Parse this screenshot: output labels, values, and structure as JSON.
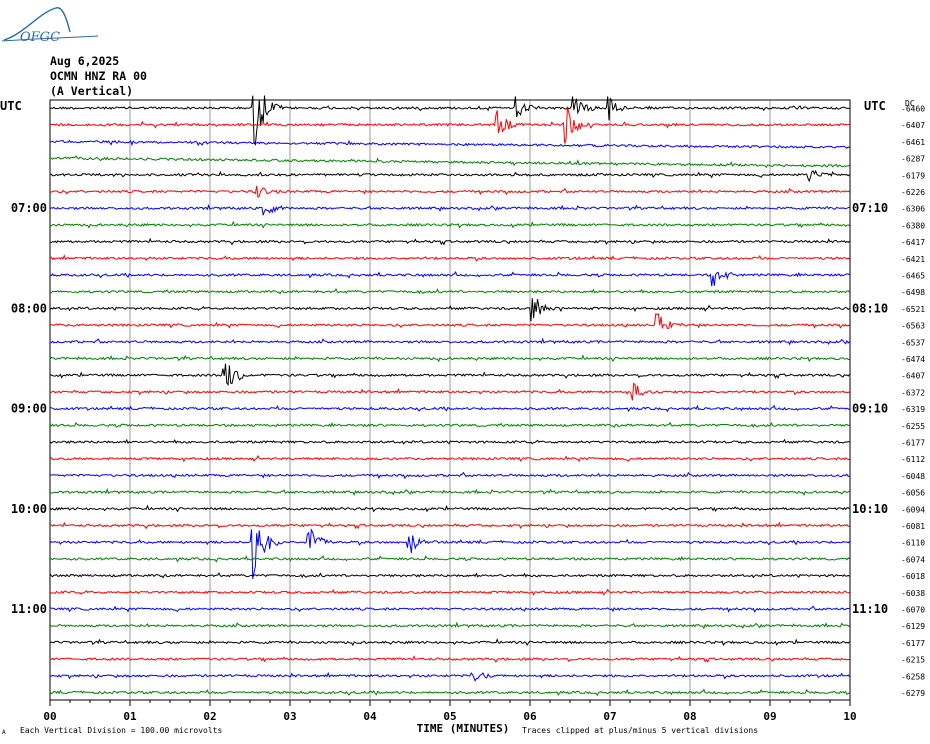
{
  "header": {
    "logo": "OFGC",
    "date": "Aug 6,2025",
    "station": "OCMN HNZ RA 00",
    "component": "(A Vertical)",
    "utc_left": "UTC",
    "utc_right": "UTC",
    "dc_label": "DC"
  },
  "footer": {
    "division_note": "Each Vertical Division =  100.00 microvolts",
    "axis_title": "TIME (MINUTES)",
    "clip_note": "Traces clipped at plus/minus 5 vertical divisions",
    "corner_mark": "A"
  },
  "colors": {
    "trace_cycle": [
      "#000000",
      "#ff0000",
      "#0000ff",
      "#008000"
    ],
    "grid": "#808080",
    "logo": "#2b6ca8"
  },
  "chart_data": {
    "type": "helicorder",
    "xlabel": "TIME (MINUTES)",
    "xlim": [
      0,
      10
    ],
    "x_tick_labels": [
      "00",
      "01",
      "02",
      "03",
      "04",
      "05",
      "06",
      "07",
      "08",
      "09",
      "10"
    ],
    "rows_per_hour": 6,
    "minutes_per_row": 10,
    "left_time_labels": [
      {
        "row": 6,
        "label": "07:00"
      },
      {
        "row": 12,
        "label": "08:00"
      },
      {
        "row": 18,
        "label": "09:00"
      },
      {
        "row": 24,
        "label": "10:00"
      },
      {
        "row": 30,
        "label": "11:00"
      }
    ],
    "right_time_labels": [
      {
        "row": 6,
        "label": "07:10"
      },
      {
        "row": 12,
        "label": "08:10"
      },
      {
        "row": 18,
        "label": "09:10"
      },
      {
        "row": 24,
        "label": "10:10"
      },
      {
        "row": 30,
        "label": "11:10"
      }
    ],
    "dc_offsets": [
      -6460,
      -6407,
      -6461,
      -6287,
      -6179,
      -6226,
      -6306,
      -6380,
      -6417,
      -6421,
      -6465,
      -6498,
      -6521,
      -6563,
      -6537,
      -6474,
      -6407,
      -6372,
      -6319,
      -6255,
      -6177,
      -6112,
      -6048,
      -6056,
      -6094,
      -6081,
      -6110,
      -6074,
      -6018,
      -6038,
      -6070,
      -6129,
      -6177,
      -6215,
      -6258,
      -6279
    ],
    "events": [
      {
        "row": 0,
        "minute": 2.57,
        "amplitude": 4.5
      },
      {
        "row": 0,
        "minute": 5.85,
        "amplitude": 1.5
      },
      {
        "row": 0,
        "minute": 6.55,
        "amplitude": 1.5
      },
      {
        "row": 0,
        "minute": 7.0,
        "amplitude": 1.5
      },
      {
        "row": 1,
        "minute": 5.6,
        "amplitude": 2.0
      },
      {
        "row": 1,
        "minute": 6.45,
        "amplitude": 2.5
      },
      {
        "row": 4,
        "minute": 9.5,
        "amplitude": 1.0
      },
      {
        "row": 5,
        "minute": 2.6,
        "amplitude": 1.0
      },
      {
        "row": 6,
        "minute": 2.7,
        "amplitude": 1.0
      },
      {
        "row": 10,
        "minute": 8.3,
        "amplitude": 1.5
      },
      {
        "row": 12,
        "minute": 6.05,
        "amplitude": 1.5
      },
      {
        "row": 13,
        "minute": 7.6,
        "amplitude": 1.5
      },
      {
        "row": 16,
        "minute": 2.2,
        "amplitude": 2.5
      },
      {
        "row": 17,
        "minute": 7.3,
        "amplitude": 1.2
      },
      {
        "row": 26,
        "minute": 2.55,
        "amplitude": 4.5
      },
      {
        "row": 26,
        "minute": 3.25,
        "amplitude": 2.0
      },
      {
        "row": 26,
        "minute": 4.5,
        "amplitude": 1.5
      },
      {
        "row": 34,
        "minute": 5.3,
        "amplitude": 1.0
      }
    ]
  }
}
